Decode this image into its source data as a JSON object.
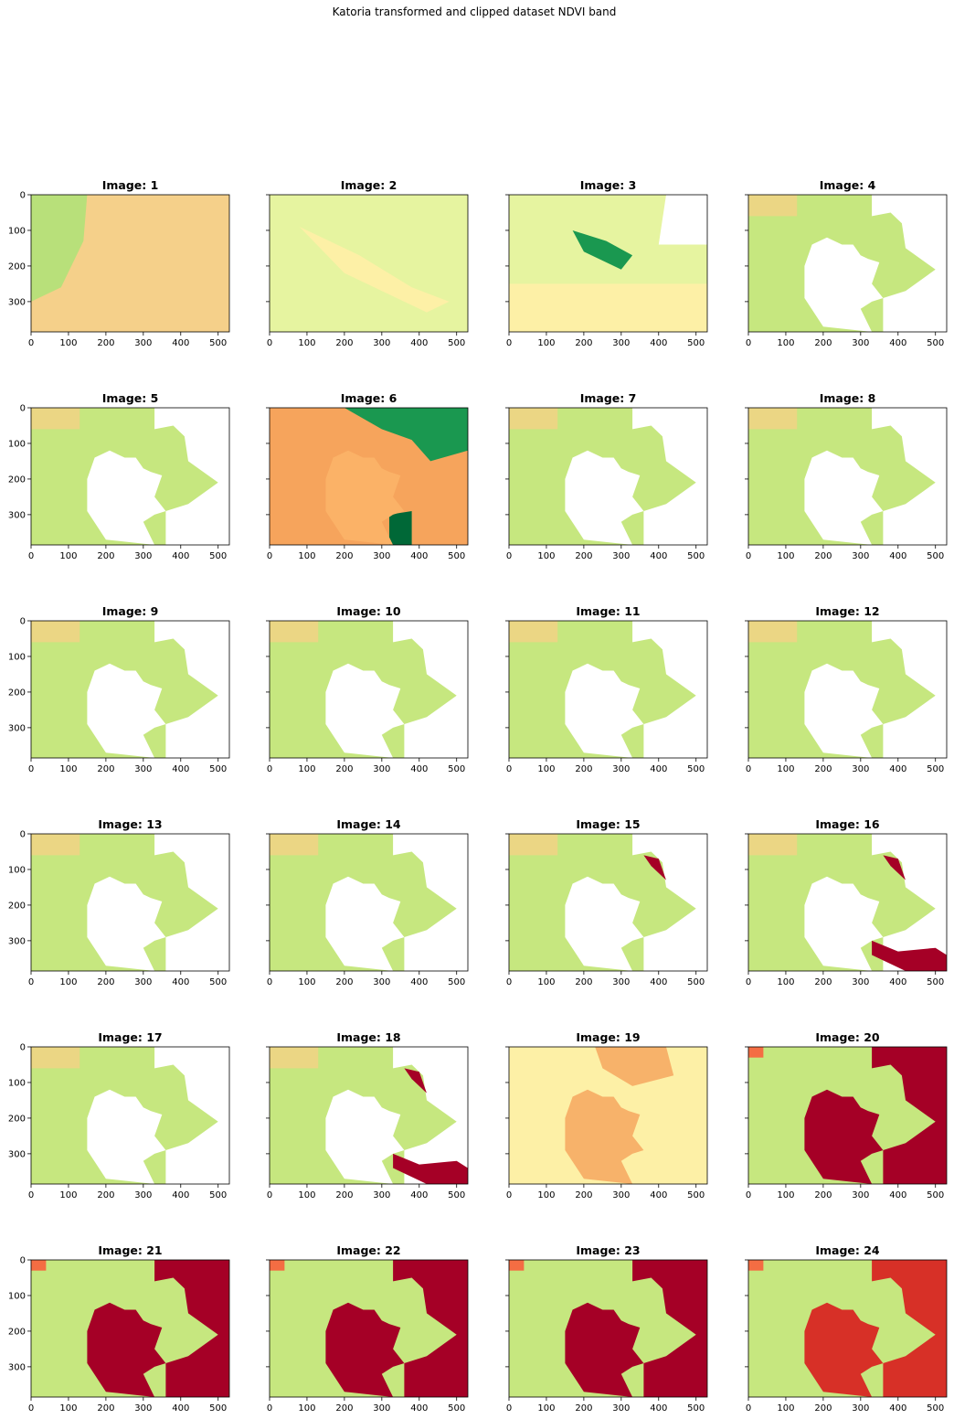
{
  "figure": {
    "suptitle": "Katoria transformed and clipped dataset NDVI band"
  },
  "colors": {
    "background": "#ffffff",
    "axis": "#000000",
    "colormap": "RdYlGn",
    "water_nodata": "#ffffff",
    "cloud_red": "#a50026",
    "land_green": "#c6e77f",
    "land_yellow": "#fdf0a6",
    "land_orange": "#f7b26a"
  },
  "chart_data": {
    "type": "heatmap",
    "layout": "grid of 6 rows x 4 columns of image panels with shared y-axis per row",
    "xlim": [
      0,
      530
    ],
    "ylim": [
      385,
      0
    ],
    "xticks": [
      "0",
      "100",
      "200",
      "300",
      "400",
      "500"
    ],
    "yticks": [
      "0",
      "100",
      "200",
      "300"
    ],
    "panels": [
      {
        "title": "Image: 1",
        "style": "orange_land_with_green_edges"
      },
      {
        "title": "Image: 2",
        "style": "green_yellow_few_gaps"
      },
      {
        "title": "Image: 3",
        "style": "green_yellow_with_dark_patches"
      },
      {
        "title": "Image: 4",
        "style": "lake_masked"
      },
      {
        "title": "Image: 5",
        "style": "lake_masked_greener"
      },
      {
        "title": "Image: 6",
        "style": "orange_with_dark_green"
      },
      {
        "title": "Image: 7",
        "style": "lake_masked"
      },
      {
        "title": "Image: 8",
        "style": "lake_masked"
      },
      {
        "title": "Image: 9",
        "style": "lake_masked"
      },
      {
        "title": "Image: 10",
        "style": "lake_masked"
      },
      {
        "title": "Image: 11",
        "style": "lake_masked"
      },
      {
        "title": "Image: 12",
        "style": "lake_masked"
      },
      {
        "title": "Image: 13",
        "style": "lake_masked"
      },
      {
        "title": "Image: 14",
        "style": "lake_masked"
      },
      {
        "title": "Image: 15",
        "style": "lake_masked_red_fringe"
      },
      {
        "title": "Image: 16",
        "style": "lake_masked_red_blotches"
      },
      {
        "title": "Image: 17",
        "style": "lake_masked"
      },
      {
        "title": "Image: 18",
        "style": "lake_masked_red_blotches"
      },
      {
        "title": "Image: 19",
        "style": "orange_lake"
      },
      {
        "title": "Image: 20",
        "style": "red_lake"
      },
      {
        "title": "Image: 21",
        "style": "red_lake"
      },
      {
        "title": "Image: 22",
        "style": "red_lake"
      },
      {
        "title": "Image: 23",
        "style": "red_lake"
      },
      {
        "title": "Image: 24",
        "style": "red_lake_lighter"
      }
    ]
  }
}
